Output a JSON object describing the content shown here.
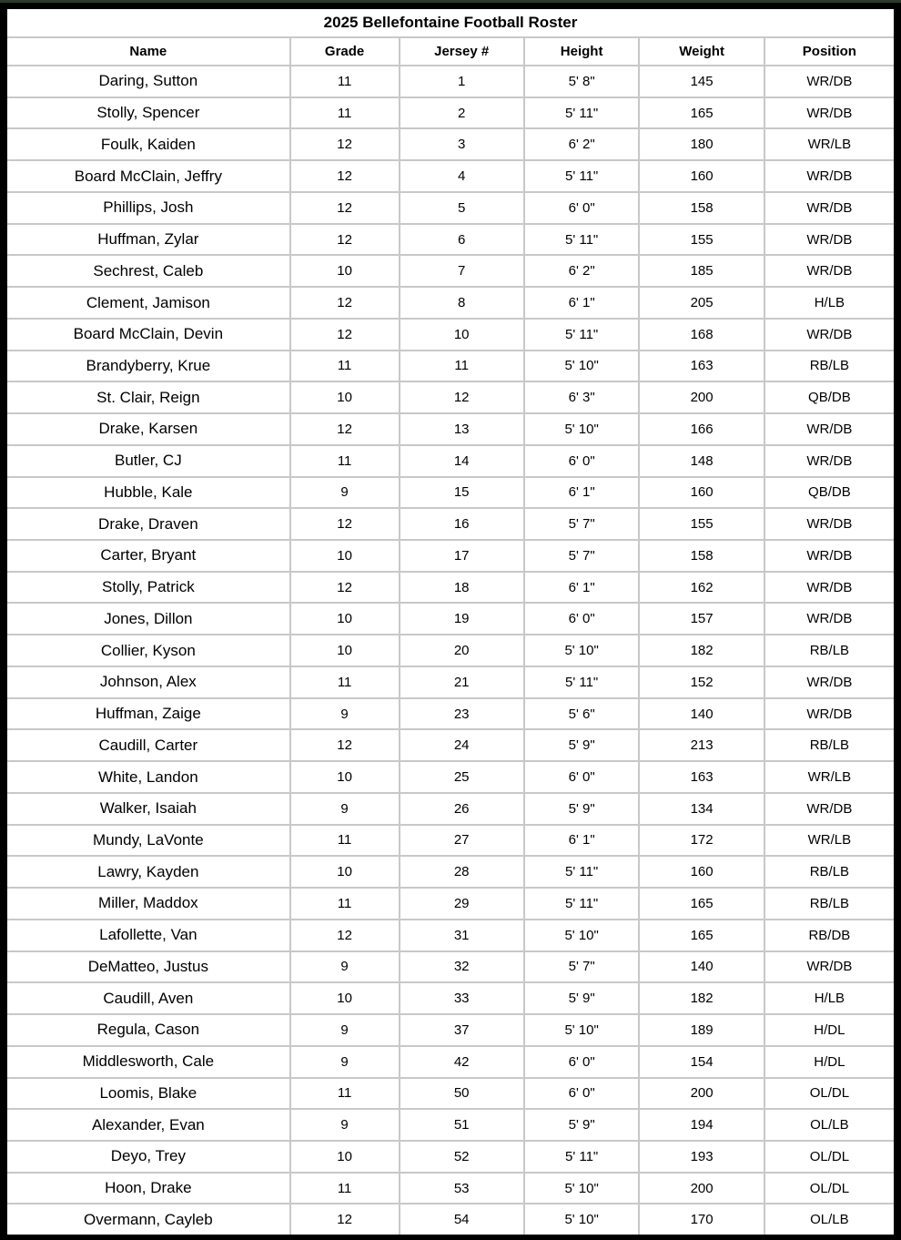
{
  "title": "2025 Bellefontaine Football Roster",
  "columns": [
    "Name",
    "Grade",
    "Jersey #",
    "Height",
    "Weight",
    "Position"
  ],
  "column_keys": [
    "name",
    "grade",
    "jersey",
    "height",
    "weight",
    "position"
  ],
  "rows": [
    [
      "Daring, Sutton",
      "11",
      "1",
      "5' 8\"",
      "145",
      "WR/DB"
    ],
    [
      "Stolly, Spencer",
      "11",
      "2",
      "5' 11\"",
      "165",
      "WR/DB"
    ],
    [
      "Foulk, Kaiden",
      "12",
      "3",
      "6' 2\"",
      "180",
      "WR/LB"
    ],
    [
      "Board McClain, Jeffry",
      "12",
      "4",
      "5' 11\"",
      "160",
      "WR/DB"
    ],
    [
      "Phillips, Josh",
      "12",
      "5",
      "6' 0\"",
      "158",
      "WR/DB"
    ],
    [
      "Huffman, Zylar",
      "12",
      "6",
      "5' 11\"",
      "155",
      "WR/DB"
    ],
    [
      "Sechrest, Caleb",
      "10",
      "7",
      "6' 2\"",
      "185",
      "WR/DB"
    ],
    [
      "Clement, Jamison",
      "12",
      "8",
      "6' 1\"",
      "205",
      "H/LB"
    ],
    [
      "Board McClain, Devin",
      "12",
      "10",
      "5' 11\"",
      "168",
      "WR/DB"
    ],
    [
      "Brandyberry, Krue",
      "11",
      "11",
      "5' 10\"",
      "163",
      "RB/LB"
    ],
    [
      "St. Clair, Reign",
      "10",
      "12",
      "6' 3\"",
      "200",
      "QB/DB"
    ],
    [
      "Drake, Karsen",
      "12",
      "13",
      "5' 10\"",
      "166",
      "WR/DB"
    ],
    [
      "Butler, CJ",
      "11",
      "14",
      "6' 0\"",
      "148",
      "WR/DB"
    ],
    [
      "Hubble, Kale",
      "9",
      "15",
      "6' 1\"",
      "160",
      "QB/DB"
    ],
    [
      "Drake, Draven",
      "12",
      "16",
      "5' 7\"",
      "155",
      "WR/DB"
    ],
    [
      "Carter, Bryant",
      "10",
      "17",
      "5' 7\"",
      "158",
      "WR/DB"
    ],
    [
      "Stolly, Patrick",
      "12",
      "18",
      "6' 1\"",
      "162",
      "WR/DB"
    ],
    [
      "Jones, Dillon",
      "10",
      "19",
      "6' 0\"",
      "157",
      "WR/DB"
    ],
    [
      "Collier, Kyson",
      "10",
      "20",
      "5' 10\"",
      "182",
      "RB/LB"
    ],
    [
      "Johnson, Alex",
      "11",
      "21",
      "5' 11\"",
      "152",
      "WR/DB"
    ],
    [
      "Huffman, Zaige",
      "9",
      "23",
      "5' 6\"",
      "140",
      "WR/DB"
    ],
    [
      "Caudill, Carter",
      "12",
      "24",
      "5' 9\"",
      "213",
      "RB/LB"
    ],
    [
      "White, Landon",
      "10",
      "25",
      "6' 0\"",
      "163",
      "WR/LB"
    ],
    [
      "Walker, Isaiah",
      "9",
      "26",
      "5' 9\"",
      "134",
      "WR/DB"
    ],
    [
      "Mundy, LaVonte",
      "11",
      "27",
      "6' 1\"",
      "172",
      "WR/LB"
    ],
    [
      "Lawry, Kayden",
      "10",
      "28",
      "5' 11\"",
      "160",
      "RB/LB"
    ],
    [
      "Miller, Maddox",
      "11",
      "29",
      "5' 11\"",
      "165",
      "RB/LB"
    ],
    [
      "Lafollette, Van",
      "12",
      "31",
      "5' 10\"",
      "165",
      "RB/DB"
    ],
    [
      "DeMatteo, Justus",
      "9",
      "32",
      "5' 7\"",
      "140",
      "WR/DB"
    ],
    [
      "Caudill, Aven",
      "10",
      "33",
      "5' 9\"",
      "182",
      "H/LB"
    ],
    [
      "Regula, Cason",
      "9",
      "37",
      "5' 10\"",
      "189",
      "H/DL"
    ],
    [
      "Middlesworth, Cale",
      "9",
      "42",
      "6' 0\"",
      "154",
      "H/DL"
    ],
    [
      "Loomis, Blake",
      "11",
      "50",
      "6' 0\"",
      "200",
      "OL/DL"
    ],
    [
      "Alexander, Evan",
      "9",
      "51",
      "5' 9\"",
      "194",
      "OL/LB"
    ],
    [
      "Deyo, Trey",
      "10",
      "52",
      "5' 11\"",
      "193",
      "OL/DL"
    ],
    [
      "Hoon, Drake",
      "11",
      "53",
      "5' 10\"",
      "200",
      "OL/DL"
    ],
    [
      "Overmann, Cayleb",
      "12",
      "54",
      "5' 10\"",
      "170",
      "OL/LB"
    ]
  ],
  "colors": {
    "frame": "#000000",
    "top_strip": "#2b3b2b",
    "grid": "#c8c8c8",
    "background": "#ffffff",
    "text": "#000000"
  }
}
